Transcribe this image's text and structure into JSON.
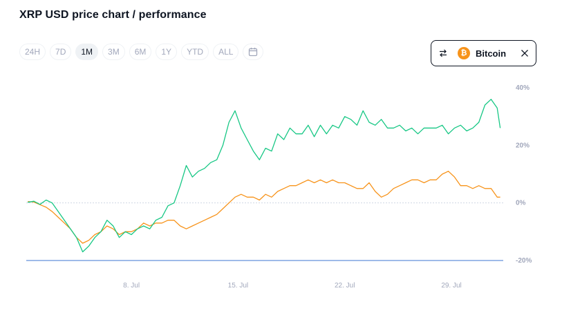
{
  "header": {
    "title": "XRP USD price chart / performance"
  },
  "ranges": [
    {
      "label": "24H",
      "active": false
    },
    {
      "label": "7D",
      "active": false
    },
    {
      "label": "1M",
      "active": true
    },
    {
      "label": "3M",
      "active": false
    },
    {
      "label": "6M",
      "active": false
    },
    {
      "label": "1Y",
      "active": false
    },
    {
      "label": "YTD",
      "active": false
    },
    {
      "label": "ALL",
      "active": false
    }
  ],
  "compare": {
    "coin_label": "Bitcoin",
    "coin_symbol": "₿",
    "coin_color": "#f7931a"
  },
  "colors": {
    "xrp_line": "#16c784",
    "btc_line": "#f7931a",
    "baseline": "#cfd6e4",
    "floor_line": "#7ea3e0"
  },
  "chart_data": {
    "type": "line",
    "x_ticks": [
      {
        "day": 8,
        "label": "8. Jul"
      },
      {
        "day": 15,
        "label": "15. Jul"
      },
      {
        "day": 22,
        "label": "22. Jul"
      },
      {
        "day": 29,
        "label": "29. Jul"
      }
    ],
    "y_ticks": [
      {
        "value": 40,
        "label": "40%"
      },
      {
        "value": 20,
        "label": "20%"
      },
      {
        "value": 0,
        "label": "0%"
      },
      {
        "value": -20,
        "label": "-20%"
      }
    ],
    "xlim": [
      1.1,
      32.4
    ],
    "ylim": [
      -20,
      40
    ],
    "series": [
      {
        "key": "xrp",
        "x": [
          1.2,
          1.6,
          2.0,
          2.4,
          2.8,
          3.2,
          3.6,
          4.0,
          4.4,
          4.8,
          5.2,
          5.6,
          6.0,
          6.4,
          6.8,
          7.2,
          7.6,
          8.0,
          8.4,
          8.8,
          9.2,
          9.6,
          10.0,
          10.4,
          10.8,
          11.2,
          11.6,
          12.0,
          12.4,
          12.8,
          13.2,
          13.6,
          14.0,
          14.4,
          14.8,
          15.2,
          15.6,
          16.0,
          16.4,
          16.8,
          17.2,
          17.6,
          18.0,
          18.4,
          18.8,
          19.2,
          19.6,
          20.0,
          20.4,
          20.8,
          21.2,
          21.6,
          22.0,
          22.4,
          22.8,
          23.2,
          23.6,
          24.0,
          24.4,
          24.8,
          25.2,
          25.6,
          26.0,
          26.4,
          26.8,
          27.2,
          27.6,
          28.0,
          28.4,
          28.8,
          29.2,
          29.6,
          30.0,
          30.4,
          30.8,
          31.2,
          31.6,
          32.0,
          32.2
        ],
        "y": [
          0.2,
          0.6,
          -0.5,
          1,
          0,
          -3,
          -6,
          -9,
          -12,
          -17,
          -15,
          -12,
          -10,
          -6,
          -8,
          -12,
          -10,
          -11,
          -9,
          -8,
          -9,
          -6,
          -5,
          -1,
          0,
          6,
          13,
          9,
          11,
          12,
          14,
          15,
          20,
          28,
          32,
          26,
          22,
          18,
          15,
          19,
          18,
          24,
          22,
          26,
          24,
          24,
          27,
          23,
          27,
          24,
          27,
          26,
          30,
          29,
          27,
          32,
          28,
          27,
          29,
          26,
          26,
          27,
          25,
          26,
          24,
          26,
          26,
          26,
          27,
          24,
          26,
          27,
          25,
          26,
          28,
          34,
          36,
          33,
          26
        ],
        "name": ""
      },
      {
        "key": "btc",
        "x": [
          1.2,
          1.6,
          2.0,
          2.4,
          2.8,
          3.2,
          3.6,
          4.0,
          4.4,
          4.8,
          5.2,
          5.6,
          6.0,
          6.4,
          6.8,
          7.2,
          7.6,
          8.0,
          8.4,
          8.8,
          9.2,
          9.6,
          10.0,
          10.4,
          10.8,
          11.2,
          11.6,
          12.0,
          12.4,
          12.8,
          13.2,
          13.6,
          14.0,
          14.4,
          14.8,
          15.2,
          15.6,
          16.0,
          16.4,
          16.8,
          17.2,
          17.6,
          18.0,
          18.4,
          18.8,
          19.2,
          19.6,
          20.0,
          20.4,
          20.8,
          21.2,
          21.6,
          22.0,
          22.4,
          22.8,
          23.2,
          23.6,
          24.0,
          24.4,
          24.8,
          25.2,
          25.6,
          26.0,
          26.4,
          26.8,
          27.2,
          27.6,
          28.0,
          28.4,
          28.8,
          29.2,
          29.6,
          30.0,
          30.4,
          30.8,
          31.2,
          31.6,
          32.0,
          32.2
        ],
        "y": [
          0.5,
          0.3,
          -0.6,
          -1.5,
          -3,
          -5,
          -7,
          -9,
          -12,
          -14,
          -13,
          -11,
          -10,
          -8,
          -9,
          -11,
          -10,
          -10,
          -9,
          -7,
          -8,
          -7,
          -7,
          -6,
          -6,
          -8,
          -9,
          -8,
          -7,
          -6,
          -5,
          -4,
          -2,
          0,
          2,
          3,
          2,
          2,
          1,
          3,
          2,
          4,
          5,
          6,
          6,
          7,
          8,
          7,
          8,
          7,
          8,
          7,
          7,
          6,
          5,
          5,
          7,
          4,
          2,
          3,
          5,
          6,
          7,
          8,
          8,
          7,
          8,
          8,
          10,
          11,
          9,
          6,
          6,
          5,
          6,
          5,
          5,
          2,
          2
        ],
        "name": ""
      }
    ]
  }
}
